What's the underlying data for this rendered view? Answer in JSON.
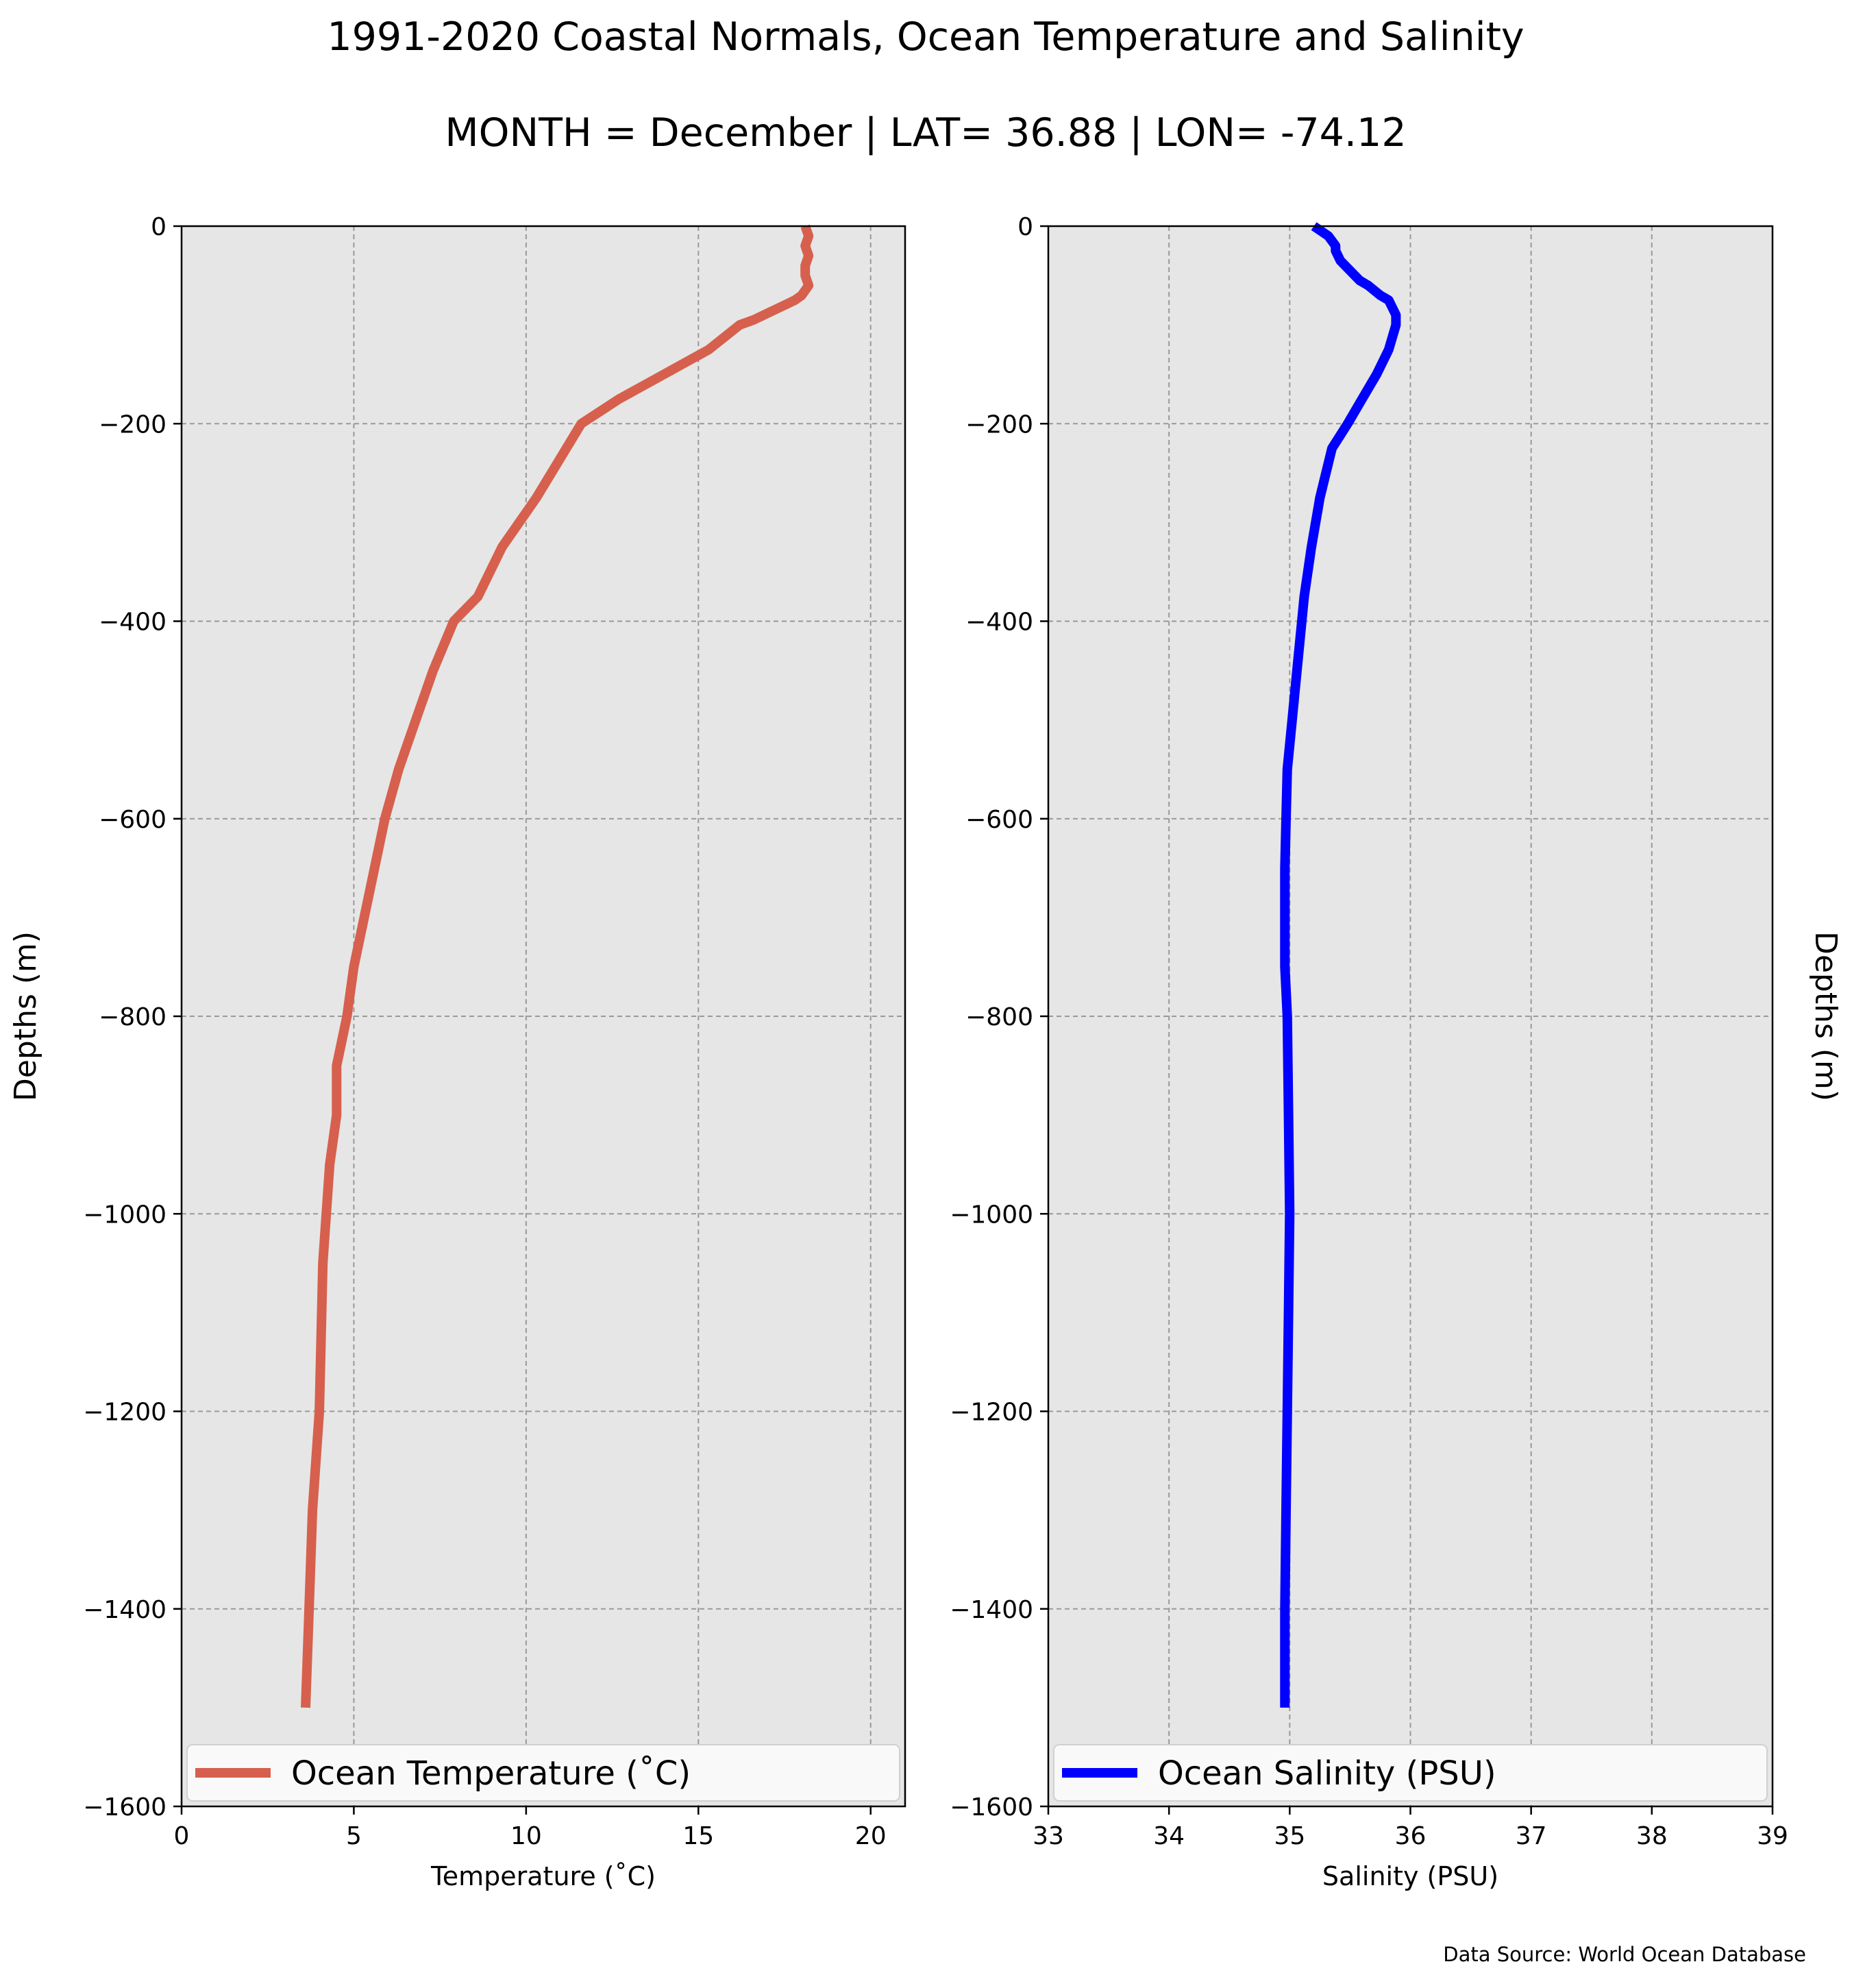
{
  "figure": {
    "title_line1": "1991-2020 Coastal Normals, Ocean Temperature and Salinity",
    "title_line2": "MONTH = December | LAT= 36.88 | LON= -74.12",
    "source": "Data Source: World Ocean Database"
  },
  "colors": {
    "temperature_line": "#d6604d",
    "salinity_line": "#0000ff",
    "panel_bg": "#e6e6e6",
    "grid": "#999999"
  },
  "chart_data": [
    {
      "type": "line",
      "orientation": "depth-profile",
      "xlabel": "Temperature ($^\\circ$C)",
      "xlabel_display": "Temperature (˚C)",
      "ylabel": "Depths (m)",
      "ylabel_side": "left",
      "xlim": [
        0,
        21
      ],
      "ylim": [
        -1600,
        0
      ],
      "xticks": [
        0,
        5,
        10,
        15,
        20
      ],
      "xtick_labels": [
        "0",
        "5",
        "10",
        "15",
        "20"
      ],
      "yticks": [
        0,
        -200,
        -400,
        -600,
        -800,
        -1000,
        -1200,
        -1400,
        -1600
      ],
      "ytick_labels": [
        "0",
        "−200",
        "−400",
        "−600",
        "−800",
        "−1000",
        "−1200",
        "−1400",
        "−1600"
      ],
      "grid": true,
      "legend_position": "bottom",
      "series": [
        {
          "name": "Ocean Temperature (˚C)",
          "x": [
            18.1,
            18.2,
            18.1,
            18.2,
            18.1,
            18.1,
            18.2,
            18.0,
            17.8,
            17.5,
            16.9,
            16.6,
            16.2,
            15.3,
            14.0,
            12.7,
            11.6,
            10.3,
            9.3,
            8.6,
            7.9,
            7.3,
            6.8,
            6.3,
            5.9,
            5.6,
            5.3,
            5.0,
            4.8,
            4.5,
            4.5,
            4.3,
            4.2,
            4.1,
            4.0,
            3.8,
            3.7,
            3.6
          ],
          "y": [
            0,
            -10,
            -20,
            -30,
            -40,
            -50,
            -60,
            -70,
            -75,
            -80,
            -90,
            -95,
            -100,
            -125,
            -150,
            -175,
            -200,
            -275,
            -325,
            -375,
            -400,
            -450,
            -500,
            -550,
            -600,
            -650,
            -700,
            -750,
            -800,
            -850,
            -900,
            -950,
            -1000,
            -1050,
            -1200,
            -1300,
            -1400,
            -1500
          ]
        }
      ]
    },
    {
      "type": "line",
      "orientation": "depth-profile",
      "xlabel": "Salinity (PSU)",
      "ylabel": "Depths (m)",
      "ylabel_side": "right",
      "xlim": [
        33,
        39
      ],
      "ylim": [
        -1600,
        0
      ],
      "xticks": [
        33,
        34,
        35,
        36,
        37,
        38,
        39
      ],
      "xtick_labels": [
        "33",
        "34",
        "35",
        "36",
        "37",
        "38",
        "39"
      ],
      "yticks": [
        0,
        -200,
        -400,
        -600,
        -800,
        -1000,
        -1200,
        -1400,
        -1600
      ],
      "ytick_labels": [
        "0",
        "−200",
        "−400",
        "−600",
        "−800",
        "−1000",
        "−1200",
        "−1400",
        "−1600"
      ],
      "grid": true,
      "legend_position": "bottom",
      "series": [
        {
          "name": "Ocean Salinity (PSU)",
          "x": [
            35.2,
            35.32,
            35.38,
            35.38,
            35.42,
            35.5,
            35.58,
            35.65,
            35.75,
            35.82,
            35.88,
            35.88,
            35.82,
            35.72,
            35.6,
            35.48,
            35.35,
            35.25,
            35.18,
            35.12,
            35.06,
            35.02,
            34.98,
            34.97,
            34.96,
            34.96,
            34.98,
            34.99,
            35.0,
            34.99,
            34.98,
            34.97,
            34.96,
            34.96
          ],
          "y": [
            0,
            -10,
            -20,
            -25,
            -35,
            -45,
            -55,
            -60,
            -70,
            -75,
            -90,
            -100,
            -125,
            -150,
            -175,
            -200,
            -225,
            -275,
            -325,
            -375,
            -450,
            -500,
            -550,
            -600,
            -650,
            -750,
            -800,
            -900,
            -1000,
            -1100,
            -1200,
            -1300,
            -1400,
            -1500
          ]
        }
      ]
    }
  ]
}
